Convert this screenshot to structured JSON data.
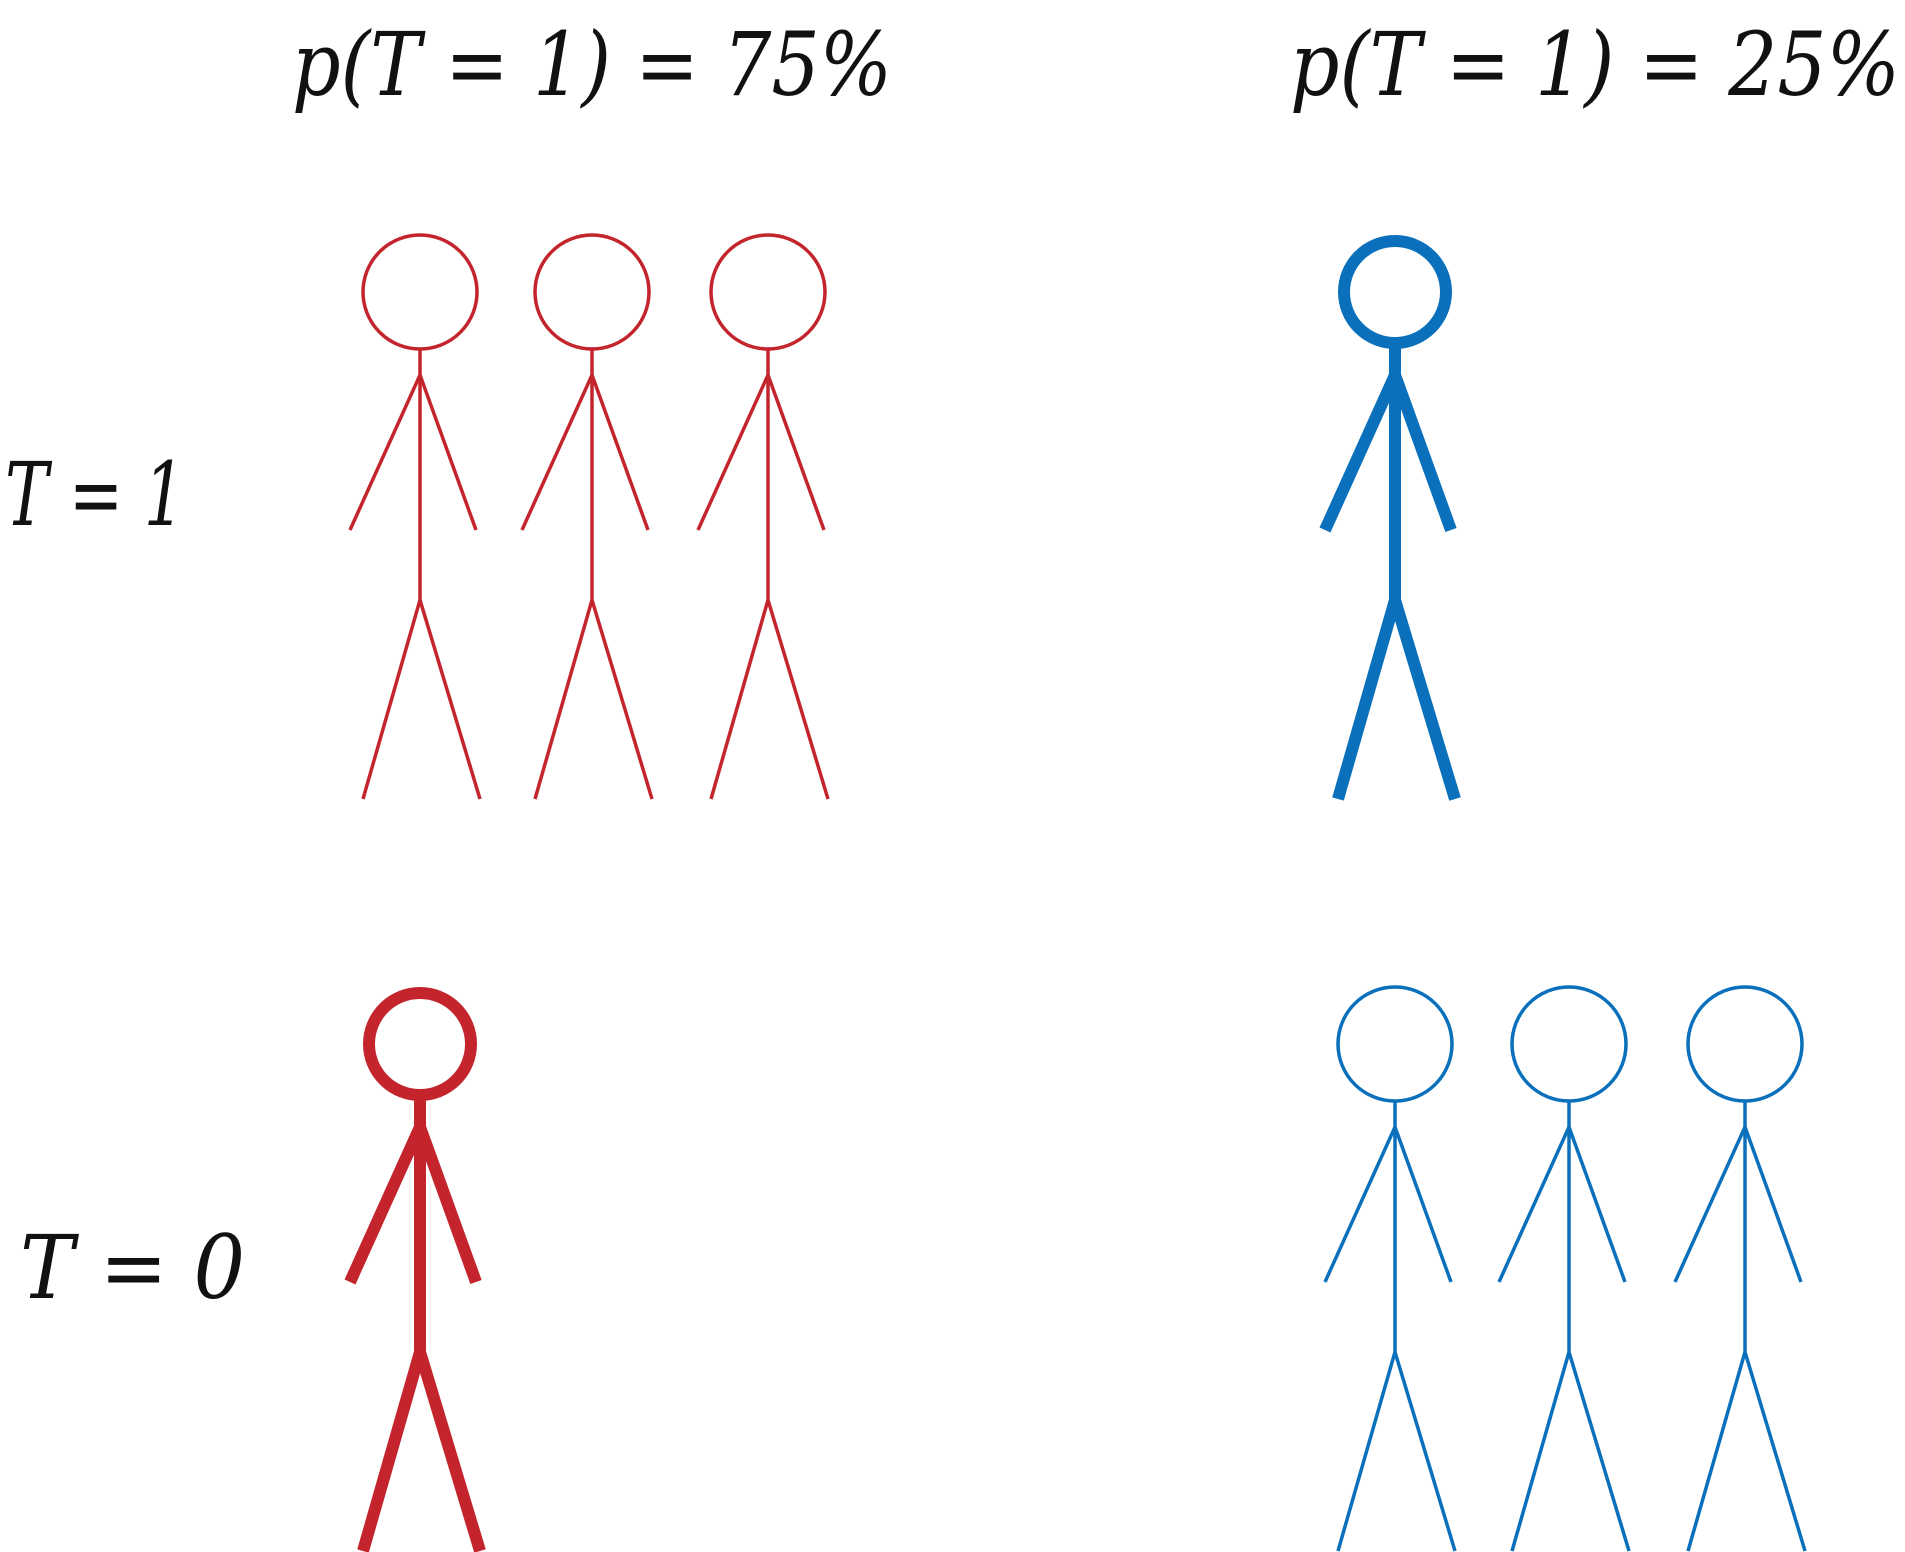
{
  "headings": {
    "left": "p(T = 1) = 75%",
    "right": "p(T = 1) = 25%"
  },
  "row_labels": {
    "top": "T = 1",
    "bottom": "T = 0"
  },
  "colors": {
    "left_group": "#c4252d",
    "right_group": "#0a70bb",
    "text": "#111111"
  },
  "groups": [
    {
      "name": "left-group",
      "color_key": "left_group",
      "treated_count": 3,
      "untreated_count": 1,
      "highlighted_row": "bottom"
    },
    {
      "name": "right-group",
      "color_key": "right_group",
      "treated_count": 1,
      "untreated_count": 3,
      "highlighted_row": "top"
    }
  ]
}
